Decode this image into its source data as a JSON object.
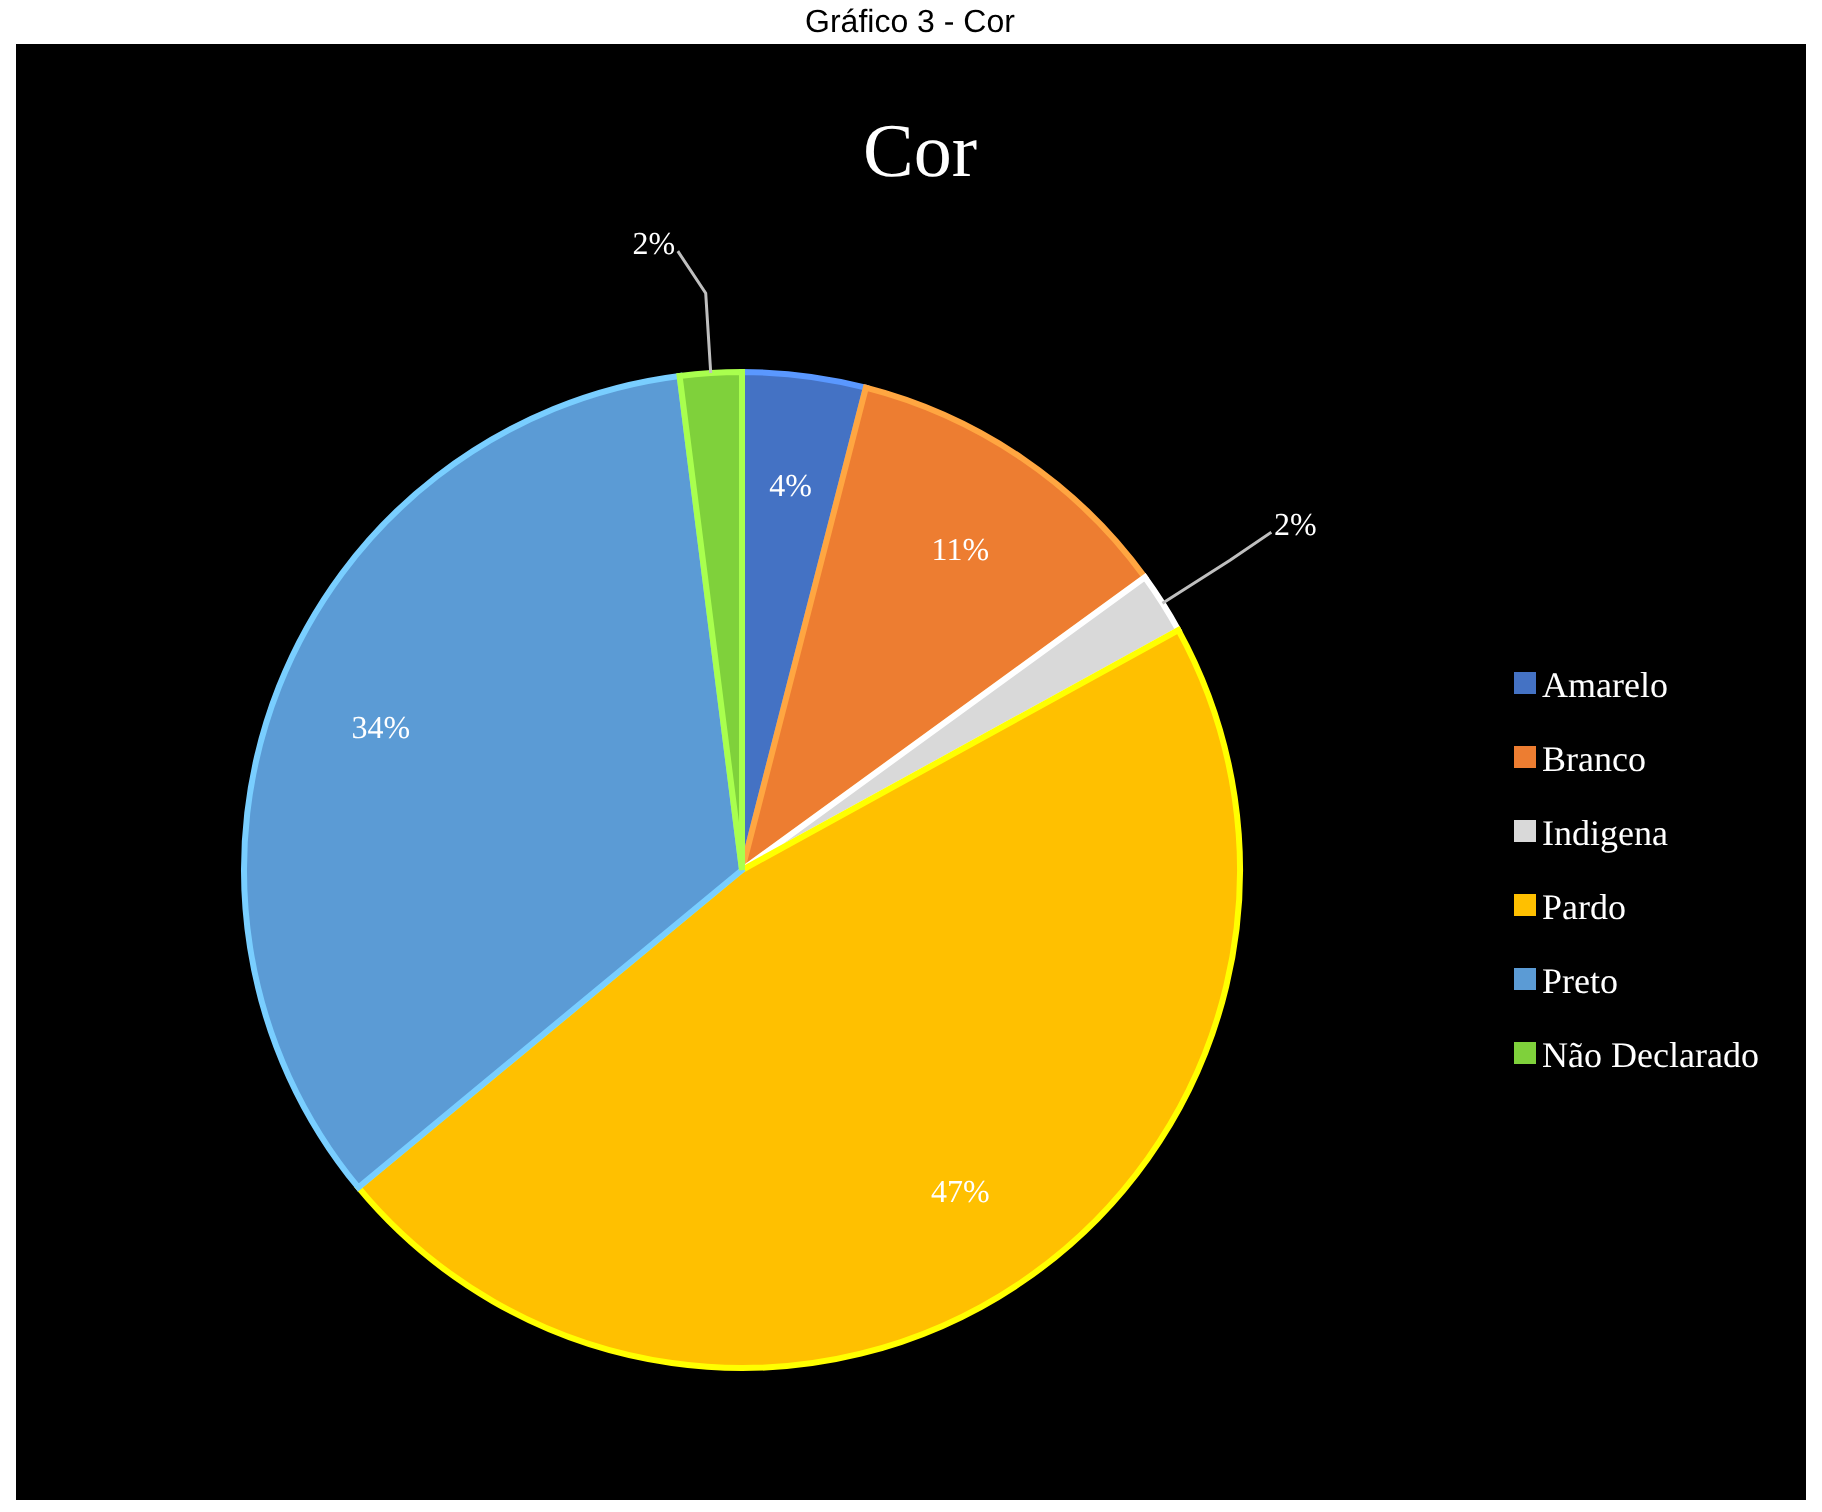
{
  "chart_data": {
    "type": "pie",
    "title": "Gráfico 3 - Cor",
    "subtitle": "Cor",
    "categories": [
      "Amarelo",
      "Branco",
      "Indigena",
      "Pardo",
      "Preto",
      "Não Declarado"
    ],
    "values": [
      4,
      11,
      2,
      47,
      34,
      2
    ],
    "colors": [
      "#4472c4",
      "#ed7d31",
      "#d9d9d9",
      "#ffc000",
      "#5b9bd5",
      "#7fd13b"
    ],
    "value_labels": [
      "4%",
      "11%",
      "2%",
      "47%",
      "34%",
      "2%"
    ],
    "legend": "right"
  }
}
